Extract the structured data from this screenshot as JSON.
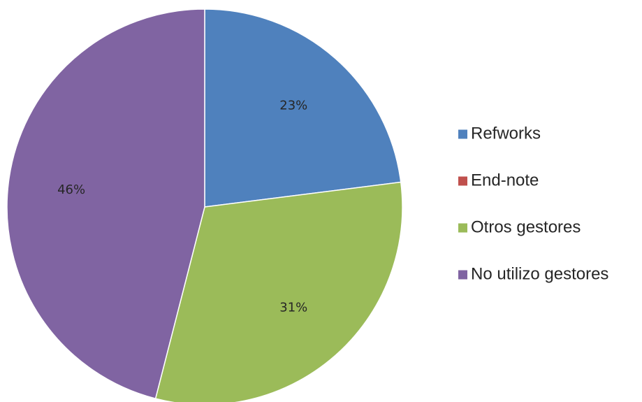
{
  "chart_data": {
    "type": "pie",
    "categories": [
      "Refworks",
      "End-note",
      "Otros gestores",
      "No utilizo gestores"
    ],
    "values": [
      23,
      0,
      31,
      46
    ],
    "value_labels": [
      "23%",
      "",
      "31%",
      "46%"
    ],
    "colors": [
      "#4f81bd",
      "#c0504d",
      "#9bbb59",
      "#8064a2"
    ],
    "start_angle_deg": 0,
    "direction": "clockwise",
    "legend_position": "right"
  }
}
